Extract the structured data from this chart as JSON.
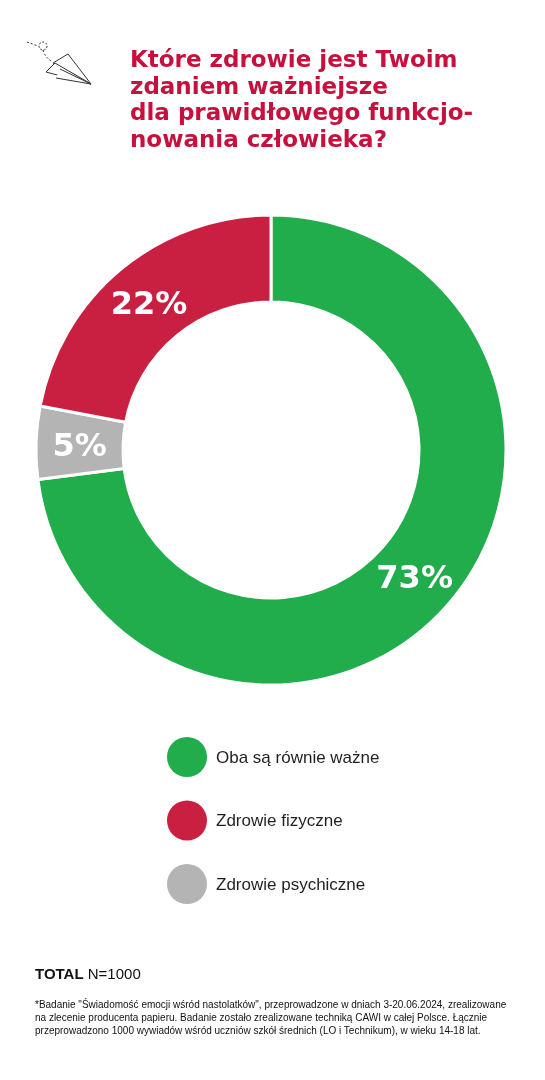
{
  "chart_data": {
    "type": "donut",
    "title": "Które zdrowie jest Twoim\nzdaniem ważniejsze\ndla prawidłowego funkcjo-\nnowania człowieka?",
    "categories": [
      "Oba są równie ważne",
      "Zdrowie psychiczne",
      "Zdrowie fizyczne"
    ],
    "values": [
      73,
      5,
      22
    ],
    "colors": [
      "#21ad4b",
      "#b4b4b4",
      "#c91f41"
    ],
    "value_labels": [
      "73%",
      "5%",
      "22%"
    ],
    "legend": "bottom",
    "annotations": [
      "TOTAL N=1000",
      "*Badanie \"Świadomość emocji wśród nastolatków\", przeprowadzone w dniach 3-20.06.2024, zrealizowane na zlecenie producenta papieru. Badanie zostało zrealizowane techniką CAWI w całej Polsce. Łącznie przeprowadzono 1000 wywiadów wśród uczniów szkół średnich (LO i Technikum), w wieku 14-18 lat."
    ]
  }
}
